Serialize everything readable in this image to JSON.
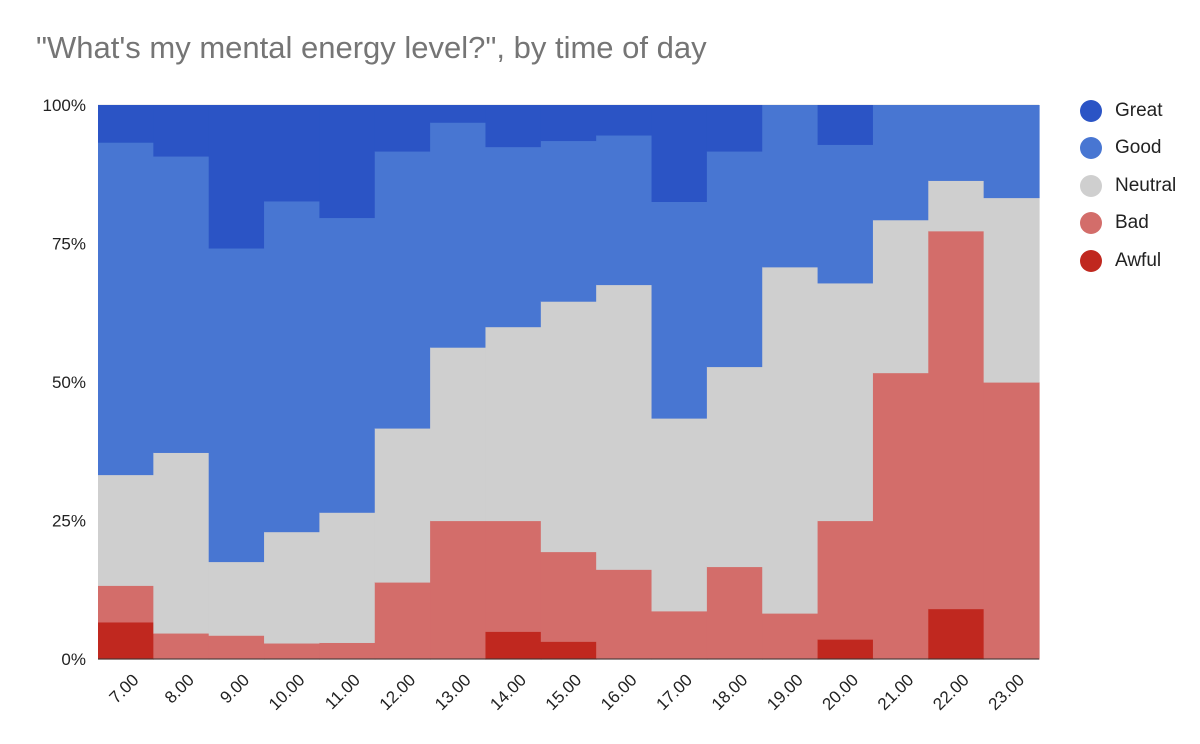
{
  "chart_data": {
    "type": "area",
    "stacked": "percent",
    "title": "\"What's my mental energy level?\", by time of day",
    "xlabel": "",
    "ylabel": "",
    "ylim": [
      0,
      100
    ],
    "y_ticks": [
      "0%",
      "25%",
      "50%",
      "75%",
      "100%"
    ],
    "y_tick_values": [
      0,
      25,
      50,
      75,
      100
    ],
    "categories": [
      "7.00",
      "8.00",
      "9.00",
      "10.00",
      "11.00",
      "12.00",
      "13.00",
      "14.00",
      "15.00",
      "16.00",
      "17.00",
      "18.00",
      "19.00",
      "20.00",
      "21.00",
      "22.00",
      "23.00"
    ],
    "legend_position": "right",
    "series": [
      {
        "name": "Awful",
        "color": "#c0281f",
        "values": [
          6.7,
          0,
          0,
          0,
          0,
          0,
          0,
          5.0,
          3.2,
          0,
          0,
          0,
          0,
          3.6,
          0,
          9.1,
          0
        ]
      },
      {
        "name": "Bad",
        "color": "#d36d6a",
        "values": [
          6.6,
          4.7,
          4.3,
          2.9,
          3.0,
          13.9,
          25.0,
          20.0,
          16.2,
          16.2,
          8.7,
          16.7,
          8.3,
          21.4,
          51.7,
          68.2,
          50.0
        ]
      },
      {
        "name": "Neutral",
        "color": "#cfcfcf",
        "values": [
          20.0,
          32.6,
          13.3,
          20.1,
          23.5,
          27.8,
          31.3,
          35.0,
          45.2,
          51.4,
          34.8,
          36.1,
          62.5,
          42.9,
          27.6,
          9.1,
          33.3
        ]
      },
      {
        "name": "Good",
        "color": "#4876d2",
        "values": [
          60.0,
          53.5,
          56.6,
          59.7,
          53.2,
          50.0,
          40.6,
          32.5,
          29.0,
          27.0,
          39.1,
          38.9,
          29.2,
          25.0,
          20.7,
          13.6,
          16.7
        ]
      },
      {
        "name": "Great",
        "color": "#2b54c5",
        "values": [
          6.7,
          9.2,
          25.8,
          17.3,
          20.3,
          8.3,
          3.1,
          7.5,
          6.4,
          5.4,
          17.4,
          8.3,
          0,
          7.1,
          0,
          0,
          0
        ]
      }
    ],
    "legend_order": [
      "Great",
      "Good",
      "Neutral",
      "Bad",
      "Awful"
    ]
  }
}
